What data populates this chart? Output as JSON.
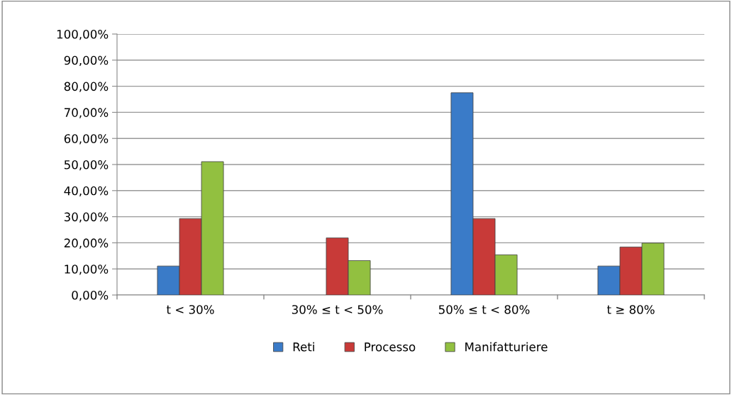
{
  "chart_data": {
    "type": "bar",
    "categories": [
      "t < 30%",
      "30% ≤ t < 50%",
      "50% ≤ t < 80%",
      "t ≥ 80%"
    ],
    "series": [
      {
        "name": "Reti",
        "color": "#3a7bc8",
        "values": [
          11.1,
          null,
          77.5,
          11.1
        ]
      },
      {
        "name": "Processo",
        "color": "#c83a38",
        "values": [
          29.3,
          21.9,
          29.3,
          18.4
        ]
      },
      {
        "name": "Manifatturiere",
        "color": "#92c040",
        "values": [
          51.1,
          13.2,
          15.4,
          19.9
        ]
      }
    ],
    "ylim": [
      0,
      100
    ],
    "yticks": [
      {
        "value": 0,
        "label": "0,00%"
      },
      {
        "value": 10,
        "label": "10,00%"
      },
      {
        "value": 20,
        "label": "20,00%"
      },
      {
        "value": 30,
        "label": "30,00%"
      },
      {
        "value": 40,
        "label": "40,00%"
      },
      {
        "value": 50,
        "label": "50,00%"
      },
      {
        "value": 60,
        "label": "60,00%"
      },
      {
        "value": 70,
        "label": "70,00%"
      },
      {
        "value": 80,
        "label": "80,00%"
      },
      {
        "value": 90,
        "label": "90,00%"
      },
      {
        "value": 100,
        "label": "100,00%"
      }
    ],
    "grid": "y",
    "legend": "bottom"
  }
}
